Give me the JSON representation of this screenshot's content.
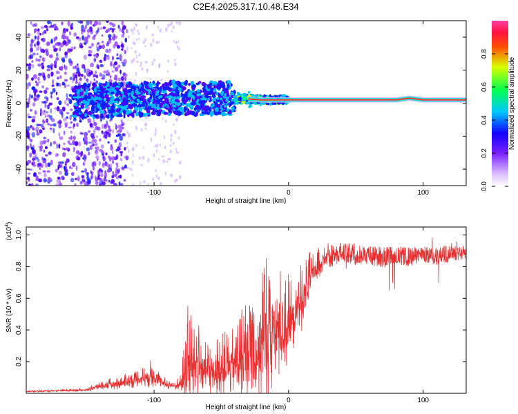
{
  "figure_title": "C2E4.2025.317.10.48.E34",
  "chart_data": [
    {
      "type": "heatmap",
      "name": "spectrogram",
      "xlabel": "Height of straight line (km)",
      "ylabel": "Frequency (Hz)",
      "xlim": [
        -195,
        132
      ],
      "ylim": [
        -50,
        50
      ],
      "xticks": [
        -100,
        0,
        100
      ],
      "yticks": [
        -40,
        -20,
        0,
        20,
        40
      ],
      "colorbar": {
        "label": "Normalized spectral amplitude",
        "range": [
          0,
          1
        ],
        "ticks": [
          "0.0",
          "0.2",
          "0.4",
          "0.6",
          "0.8"
        ],
        "tick_values": [
          0.0,
          0.2,
          0.4,
          0.6,
          0.8
        ],
        "colormap": [
          "#ffffff",
          "#a060ff",
          "#3000ff",
          "#00c8ff",
          "#00ff60",
          "#e0ff00",
          "#ff4000",
          "#ff2080"
        ]
      },
      "ridge": {
        "x": [
          -195,
          -130,
          -90,
          -60,
          -40,
          -20,
          0,
          40,
          80,
          90,
          100,
          132
        ],
        "freq_hz": [
          0,
          2,
          3,
          3,
          3,
          2,
          2,
          2,
          2,
          3,
          2,
          2
        ]
      }
    },
    {
      "type": "line",
      "name": "snr",
      "xlabel": "Height of straight line (km)",
      "ylabel": "SNR (10 * v/v)",
      "multiplier": "(x10",
      "multiplier_exp": "4",
      "xlim": [
        -195,
        132
      ],
      "ylim": [
        0,
        1.05
      ],
      "xticks": [
        -100,
        0,
        100
      ],
      "yticks": [
        0.2,
        0.4,
        0.6,
        0.8,
        1.0
      ],
      "ytick_labels": [
        "0.2",
        "0.4",
        "0.6",
        "0.8",
        "1.0"
      ],
      "color": "#e83030",
      "envelope": {
        "x": [
          -195,
          -150,
          -140,
          -130,
          -110,
          -100,
          -95,
          -85,
          -80,
          -75,
          -70,
          -60,
          -50,
          -40,
          -35,
          -30,
          -25,
          -20,
          -15,
          -10,
          -5,
          0,
          5,
          10,
          15,
          20,
          25,
          30,
          35,
          40,
          50,
          60,
          70,
          80,
          90,
          100,
          110,
          120,
          125,
          132
        ],
        "base": [
          0.01,
          0.02,
          0.04,
          0.05,
          0.08,
          0.1,
          0.06,
          0.04,
          0.05,
          0.12,
          0.14,
          0.1,
          0.12,
          0.14,
          0.16,
          0.2,
          0.18,
          0.24,
          0.28,
          0.32,
          0.34,
          0.38,
          0.46,
          0.55,
          0.68,
          0.76,
          0.82,
          0.86,
          0.88,
          0.89,
          0.88,
          0.87,
          0.86,
          0.87,
          0.86,
          0.88,
          0.86,
          0.89,
          0.9,
          0.88
        ],
        "amp": [
          0.005,
          0.01,
          0.03,
          0.04,
          0.06,
          0.1,
          0.04,
          0.03,
          0.06,
          0.35,
          0.28,
          0.18,
          0.2,
          0.22,
          0.3,
          0.45,
          0.35,
          0.55,
          0.5,
          0.4,
          0.35,
          0.3,
          0.25,
          0.22,
          0.16,
          0.12,
          0.08,
          0.07,
          0.07,
          0.06,
          0.07,
          0.06,
          0.07,
          0.06,
          0.06,
          0.05,
          0.06,
          0.06,
          0.06,
          0.04
        ]
      }
    }
  ]
}
